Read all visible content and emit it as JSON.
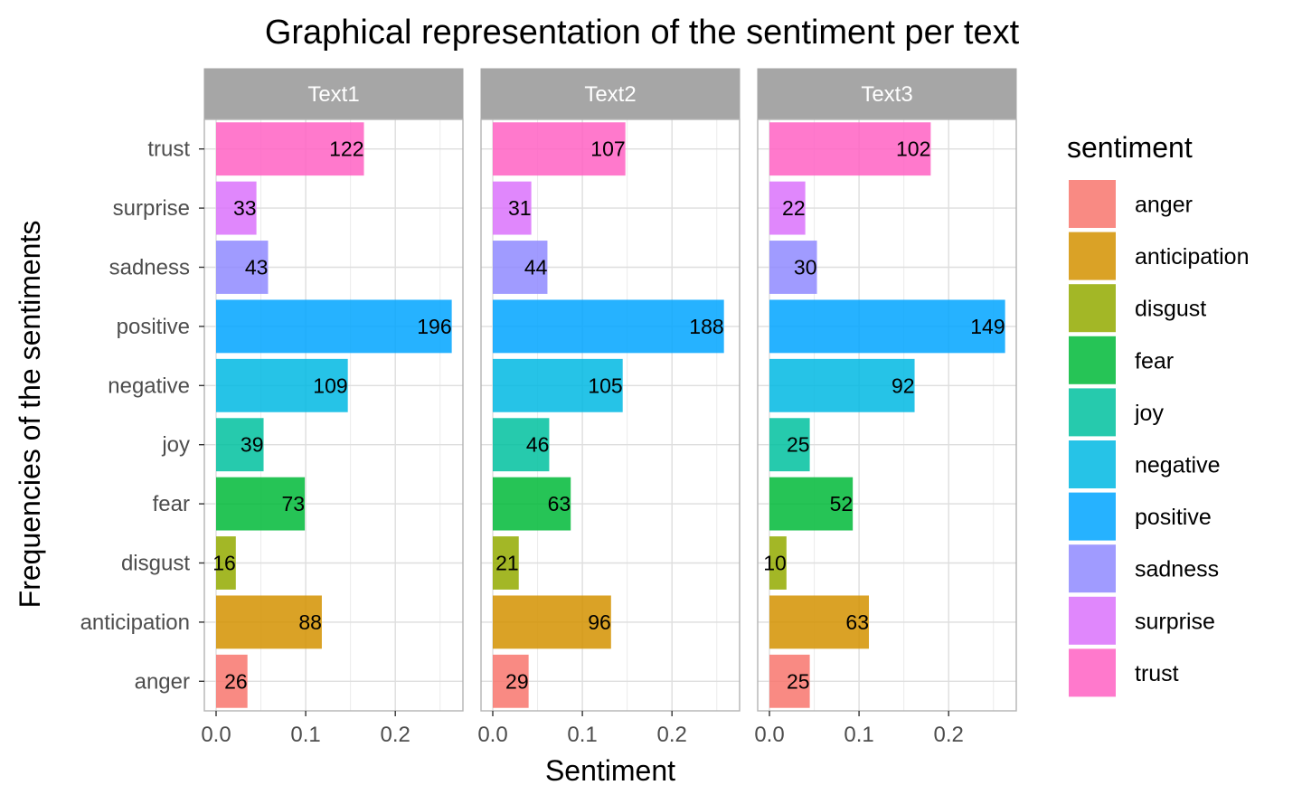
{
  "chart_data": {
    "type": "bar",
    "orientation": "horizontal",
    "title": "Graphical representation of the sentiment per text",
    "xlabel": "Sentiment",
    "ylabel": "Frequencies of the sentiments",
    "xlim": [
      0,
      0.27
    ],
    "x_ticks": [
      "0.0",
      "0.1",
      "0.2"
    ],
    "grid": true,
    "legend_title": "sentiment",
    "legend_position": "right",
    "categories": [
      "anger",
      "anticipation",
      "disgust",
      "fear",
      "joy",
      "negative",
      "positive",
      "sadness",
      "surprise",
      "trust"
    ],
    "colors": [
      "#F8766D",
      "#D39200",
      "#93AA00",
      "#00BA38",
      "#00C19F",
      "#00B9E3",
      "#00A5FF",
      "#8F8AFF",
      "#DB72FB",
      "#FF61C3"
    ],
    "panels": [
      {
        "name": "Text1",
        "counts": [
          26,
          88,
          16,
          73,
          39,
          109,
          196,
          43,
          33,
          122
        ],
        "values": [
          0.035,
          0.118,
          0.022,
          0.099,
          0.053,
          0.147,
          0.263,
          0.058,
          0.045,
          0.165
        ]
      },
      {
        "name": "Text2",
        "counts": [
          29,
          96,
          21,
          63,
          46,
          105,
          188,
          44,
          31,
          107
        ],
        "values": [
          0.04,
          0.132,
          0.029,
          0.087,
          0.063,
          0.145,
          0.258,
          0.061,
          0.043,
          0.148
        ]
      },
      {
        "name": "Text3",
        "counts": [
          25,
          63,
          10,
          52,
          25,
          92,
          149,
          30,
          22,
          102
        ],
        "values": [
          0.045,
          0.111,
          0.019,
          0.093,
          0.045,
          0.162,
          0.263,
          0.053,
          0.04,
          0.18
        ]
      }
    ]
  }
}
